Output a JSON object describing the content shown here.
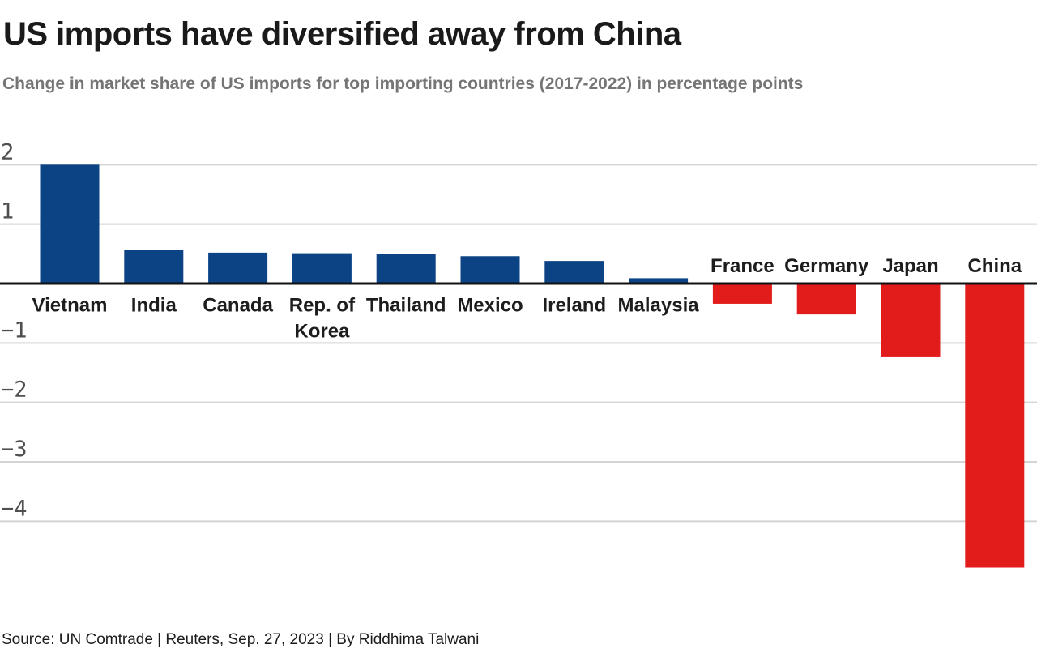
{
  "page": {
    "title": "US imports have diversified away from China",
    "subtitle": "Change in market share of US imports for top importing countries (2017-2022) in percentage points"
  },
  "footer": {
    "text": "Source: UN Comtrade | Reuters, Sep. 27, 2023 | By Riddhima Talwani"
  },
  "colors": {
    "positive": "#0b4385",
    "negative": "#e21b1b",
    "gridline": "#d4d4d4",
    "zero_line": "#111111",
    "tick_label": "#4f4f4f",
    "category_label": "#1d1d1d",
    "title": "#1a1a1a",
    "subtitle": "#757575"
  },
  "chart_data": {
    "type": "bar",
    "title": "US imports have diversified away from China",
    "subtitle": "Change in market share of US imports for top importing countries (2017-2022) in percentage points",
    "categories": [
      "Vietnam",
      "India",
      "Canada",
      "Rep. of Korea",
      "Thailand",
      "Mexico",
      "Ireland",
      "Malaysia",
      "France",
      "Germany",
      "Japan",
      "China"
    ],
    "display_labels": [
      "Vietnam",
      "India",
      "Canada",
      "Rep. of\nKorea",
      "Thailand",
      "Mexico",
      "Ireland",
      "Malaysia",
      "France",
      "Germany",
      "Japan",
      "China"
    ],
    "values": [
      2.0,
      0.57,
      0.52,
      0.51,
      0.5,
      0.46,
      0.38,
      0.09,
      -0.34,
      -0.52,
      -1.24,
      -4.78
    ],
    "yticks": [
      {
        "value": 2,
        "label": "2"
      },
      {
        "value": 1,
        "label": "1"
      },
      {
        "value": -1,
        "label": "−1"
      },
      {
        "value": -2,
        "label": "−2"
      },
      {
        "value": -3,
        "label": "−3"
      },
      {
        "value": -4,
        "label": "−4"
      }
    ],
    "ylim": [
      -5.1,
      2.55
    ],
    "xlabel": "",
    "ylabel": "",
    "unit": "percentage points",
    "grid": true,
    "legend": false,
    "zero_line": true,
    "positive_color": "#0b4385",
    "negative_color": "#e21b1b",
    "source": "Source: UN Comtrade | Reuters, Sep. 27, 2023 | By Riddhima Talwani"
  }
}
